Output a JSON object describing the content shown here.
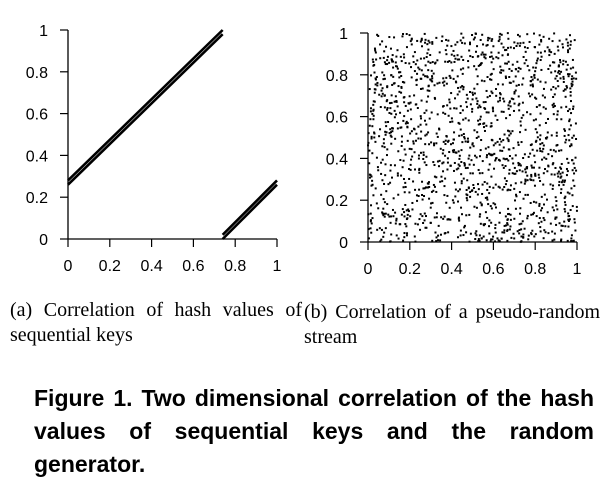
{
  "chart_data": [
    {
      "type": "line",
      "title": "",
      "xlabel": "",
      "ylabel": "",
      "xlim": [
        0,
        1
      ],
      "ylim": [
        0,
        1
      ],
      "x_ticks": [
        "0",
        "0.2",
        "0.4",
        "0.6",
        "0.8",
        "1"
      ],
      "y_ticks": [
        "0",
        "0.2",
        "0.4",
        "0.6",
        "0.8",
        "1"
      ],
      "grid": false,
      "series": [
        {
          "x": [
            0,
            0.74
          ],
          "y": [
            0.28,
            1.0
          ]
        },
        {
          "x": [
            0,
            0.74
          ],
          "y": [
            0.26,
            0.98
          ]
        },
        {
          "x": [
            0.74,
            1.0
          ],
          "y": [
            0.02,
            0.28
          ]
        },
        {
          "x": [
            0.74,
            1.0
          ],
          "y": [
            0.0,
            0.26
          ]
        }
      ]
    },
    {
      "type": "scatter",
      "title": "",
      "xlabel": "",
      "ylabel": "",
      "xlim": [
        0,
        1
      ],
      "ylim": [
        0,
        1
      ],
      "x_ticks": [
        "0",
        "0.2",
        "0.4",
        "0.6",
        "0.8",
        "1"
      ],
      "y_ticks": [
        "0",
        "0.2",
        "0.4",
        "0.6",
        "0.8",
        "1"
      ],
      "grid": false,
      "point_count": 1500,
      "distribution": "uniform"
    }
  ],
  "captions": {
    "a": "(a) Correlation of hash values of sequential keys",
    "b": "(b) Correlation of a pseudo-random stream"
  },
  "figure_caption": "Figure 1. Two dimensional correlation of the hash values of sequential keys and the random generator."
}
